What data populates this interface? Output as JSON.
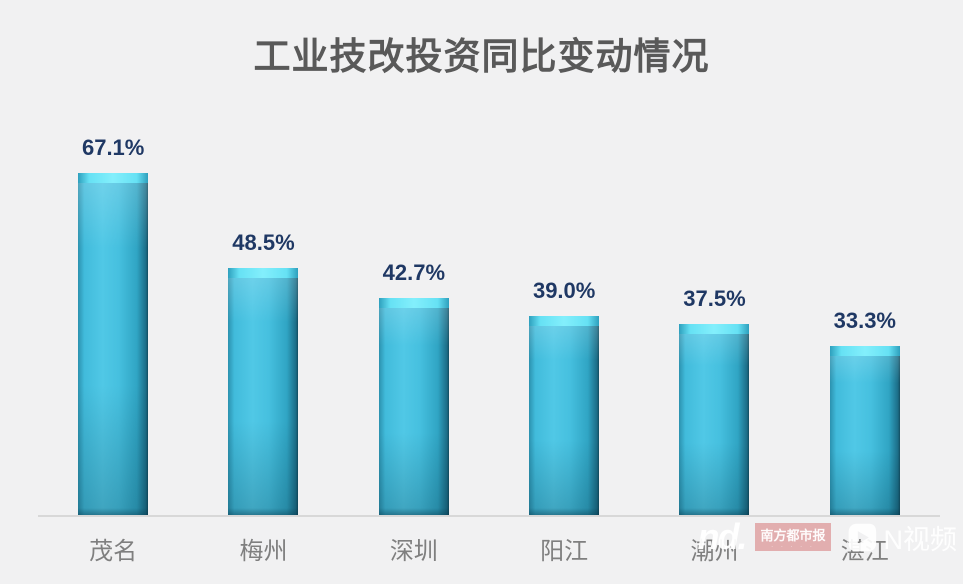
{
  "chart_data": {
    "type": "bar",
    "title": "工业技改投资同比变动情况",
    "categories": [
      "茂名",
      "梅州",
      "深圳",
      "阳江",
      "潮州",
      "湛江"
    ],
    "values": [
      67.1,
      48.5,
      42.7,
      39.0,
      37.5,
      33.3
    ],
    "data_labels": [
      "67.1%",
      "48.5%",
      "42.7%",
      "39.0%",
      "37.5%",
      "33.3%"
    ],
    "xlabel": "",
    "ylabel": "",
    "ylim": [
      0,
      78
    ],
    "grid": false,
    "legend": null,
    "colors": {
      "bar": "#3EBCDC",
      "bar_highlight": "#83EFFC",
      "bar_shadow": "#134C5F",
      "data_label": "#1F3864",
      "category_label": "#7F7F7F",
      "title": "#595959",
      "background": "#F1F1F2",
      "axis_line": "#D8D8D8"
    }
  },
  "watermark": {
    "logo_text": "nd.",
    "badge_text": "南方都市报",
    "badge_subtext": "· · · · ·",
    "play_icon": "play-icon",
    "video_label": "N视频"
  }
}
